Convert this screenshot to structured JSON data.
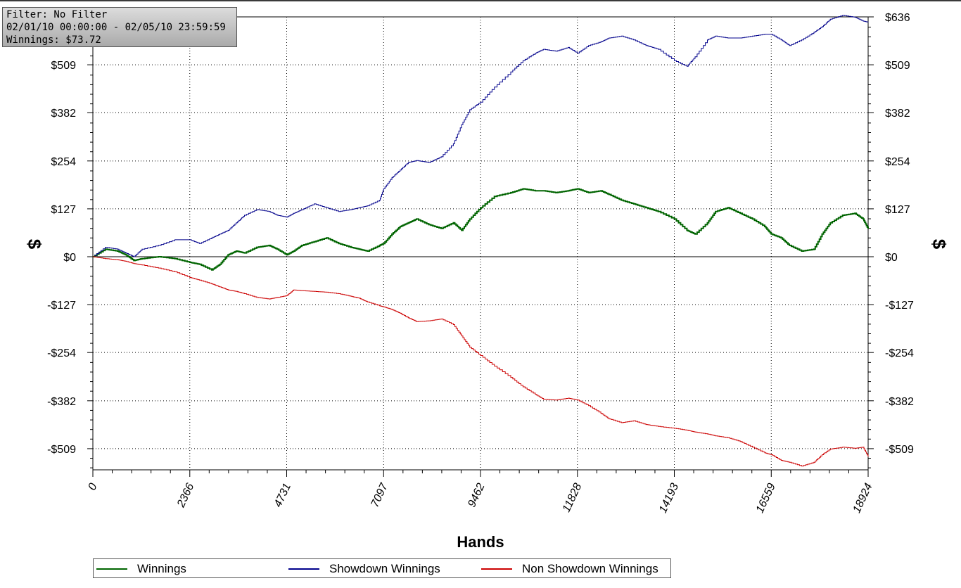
{
  "info_box": {
    "filter": "Filter: No Filter",
    "date_range": "02/01/10 00:00:00 - 02/05/10 23:59:59",
    "winnings": "Winnings: $73.72"
  },
  "chart_data": {
    "type": "line",
    "xlabel": "Hands",
    "ylabel": "$",
    "ylabel_right": "$",
    "xlim": [
      0,
      18924
    ],
    "ylim": [
      -570,
      636
    ],
    "x_ticks": [
      0,
      2366,
      4731,
      7097,
      9462,
      11828,
      14193,
      16559,
      18924
    ],
    "x_tick_labels": [
      "0",
      "2366",
      "4731",
      "7097",
      "9462",
      "11828",
      "14193",
      "16559",
      "18924"
    ],
    "y_ticks": [
      636,
      509,
      382,
      254,
      127,
      0,
      -127,
      -254,
      -382,
      -509
    ],
    "y_tick_labels": [
      "$636",
      "$509",
      "$382",
      "$254",
      "$127",
      "$0",
      "-$127",
      "-$254",
      "-$382",
      "-$509"
    ],
    "grid": true,
    "legend_position": "bottom",
    "series": [
      {
        "name": "Winnings",
        "color": "#006400",
        "x": [
          0,
          300,
          600,
          800,
          1000,
          1200,
          1600,
          2000,
          2366,
          2600,
          2900,
          3100,
          3300,
          3500,
          3700,
          4000,
          4300,
          4500,
          4731,
          4900,
          5100,
          5400,
          5700,
          6000,
          6300,
          6500,
          6700,
          7000,
          7097,
          7300,
          7500,
          7700,
          7900,
          8200,
          8500,
          8800,
          9000,
          9200,
          9462,
          9800,
          10200,
          10500,
          10800,
          11000,
          11300,
          11600,
          11828,
          12100,
          12400,
          12600,
          12900,
          13200,
          13500,
          13800,
          14193,
          14500,
          14700,
          15000,
          15200,
          15500,
          15800,
          16100,
          16400,
          16559,
          16800,
          17000,
          17300,
          17600,
          17800,
          18000,
          18300,
          18600,
          18800,
          18924
        ],
        "y": [
          0,
          20,
          15,
          5,
          -10,
          -5,
          0,
          -5,
          -15,
          -20,
          -35,
          -20,
          5,
          15,
          10,
          25,
          30,
          20,
          5,
          15,
          30,
          40,
          50,
          35,
          25,
          20,
          15,
          30,
          35,
          60,
          80,
          90,
          100,
          85,
          75,
          90,
          70,
          100,
          130,
          160,
          170,
          180,
          175,
          175,
          170,
          175,
          180,
          170,
          175,
          165,
          150,
          140,
          130,
          120,
          100,
          70,
          60,
          90,
          120,
          130,
          115,
          100,
          80,
          60,
          50,
          30,
          15,
          20,
          60,
          90,
          110,
          115,
          100,
          74
        ]
      },
      {
        "name": "Showdown Winnings",
        "color": "#00008b",
        "x": [
          0,
          300,
          600,
          800,
          1000,
          1200,
          1600,
          2000,
          2366,
          2600,
          2900,
          3100,
          3300,
          3500,
          3700,
          4000,
          4300,
          4500,
          4731,
          4900,
          5100,
          5400,
          5700,
          6000,
          6300,
          6500,
          6700,
          7000,
          7097,
          7300,
          7500,
          7700,
          7900,
          8200,
          8500,
          8800,
          9000,
          9200,
          9462,
          9800,
          10200,
          10500,
          10800,
          11000,
          11300,
          11600,
          11828,
          12100,
          12400,
          12600,
          12900,
          13200,
          13500,
          13800,
          14193,
          14500,
          14700,
          15000,
          15200,
          15500,
          15800,
          16100,
          16400,
          16559,
          16800,
          17000,
          17300,
          17600,
          17800,
          18000,
          18300,
          18600,
          18800,
          18924
        ],
        "y": [
          0,
          25,
          20,
          10,
          0,
          20,
          30,
          45,
          45,
          35,
          50,
          60,
          70,
          90,
          110,
          125,
          120,
          110,
          105,
          115,
          125,
          140,
          130,
          120,
          125,
          130,
          135,
          150,
          180,
          210,
          230,
          250,
          255,
          250,
          265,
          300,
          350,
          390,
          410,
          450,
          490,
          520,
          540,
          550,
          545,
          555,
          540,
          560,
          570,
          580,
          585,
          575,
          560,
          550,
          520,
          505,
          530,
          575,
          585,
          580,
          580,
          585,
          590,
          590,
          575,
          560,
          575,
          595,
          610,
          630,
          640,
          635,
          625,
          622
        ]
      },
      {
        "name": "Non Showdown Winnings",
        "color": "#cc0000",
        "x": [
          0,
          300,
          600,
          800,
          1000,
          1200,
          1600,
          2000,
          2366,
          2600,
          2900,
          3100,
          3300,
          3500,
          3700,
          4000,
          4300,
          4500,
          4731,
          4900,
          5100,
          5400,
          5700,
          6000,
          6300,
          6500,
          6700,
          7000,
          7097,
          7300,
          7500,
          7700,
          7900,
          8200,
          8500,
          8800,
          9000,
          9200,
          9462,
          9800,
          10200,
          10500,
          10800,
          11000,
          11300,
          11600,
          11828,
          12100,
          12400,
          12600,
          12900,
          13200,
          13500,
          13800,
          14193,
          14500,
          14700,
          15000,
          15200,
          15500,
          15800,
          16100,
          16400,
          16559,
          16800,
          17000,
          17300,
          17600,
          17800,
          18000,
          18300,
          18600,
          18800,
          18924
        ],
        "y": [
          0,
          -5,
          -8,
          -12,
          -18,
          -22,
          -30,
          -40,
          -55,
          -62,
          -72,
          -80,
          -88,
          -92,
          -98,
          -108,
          -112,
          -108,
          -103,
          -88,
          -90,
          -92,
          -94,
          -98,
          -105,
          -110,
          -120,
          -130,
          -133,
          -140,
          -150,
          -162,
          -172,
          -170,
          -165,
          -180,
          -210,
          -240,
          -262,
          -290,
          -320,
          -345,
          -365,
          -378,
          -380,
          -375,
          -380,
          -395,
          -415,
          -430,
          -440,
          -435,
          -445,
          -450,
          -455,
          -460,
          -465,
          -470,
          -475,
          -480,
          -490,
          -505,
          -520,
          -525,
          -540,
          -545,
          -555,
          -545,
          -525,
          -510,
          -505,
          -508,
          -505,
          -530
        ]
      }
    ]
  }
}
